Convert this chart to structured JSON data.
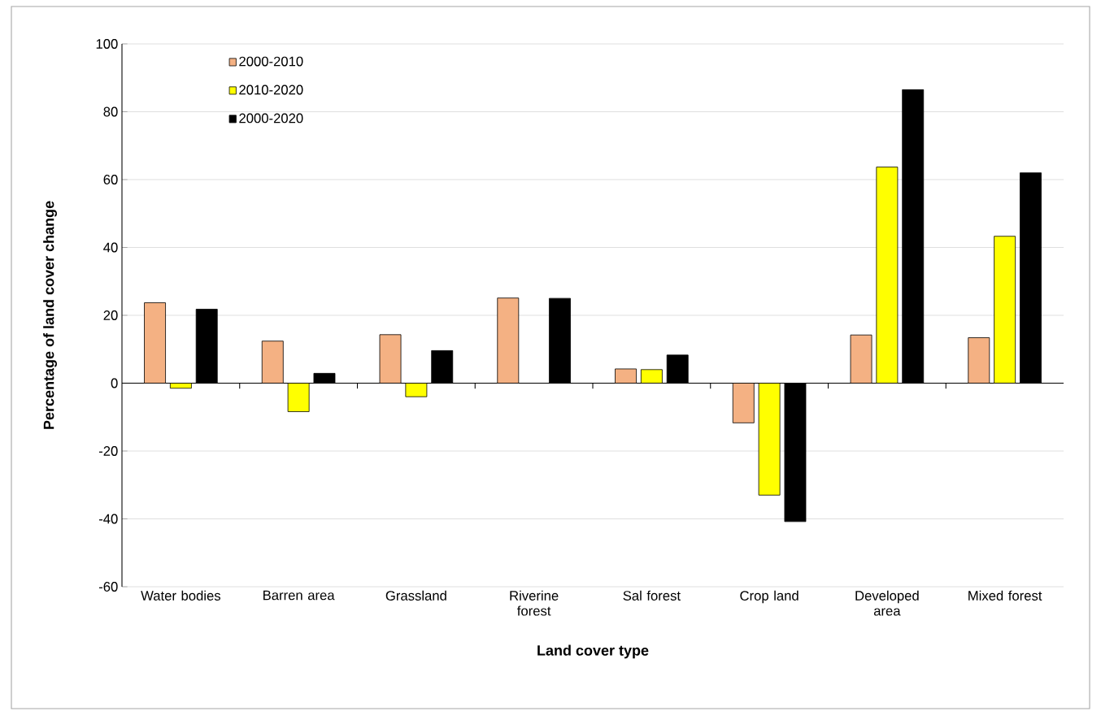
{
  "chart_data": {
    "type": "bar",
    "xlabel": "Land cover type",
    "ylabel": "Percentage of  land cover change",
    "categories": [
      "Water bodies",
      "Barren area",
      "Grassland",
      "Riverine forest",
      "Sal forest",
      "Crop land",
      "Developed area",
      "Mixed forest"
    ],
    "series": [
      {
        "name": "2000-2010",
        "color": "#f4b183",
        "values": [
          23.7,
          12.4,
          14.3,
          25.1,
          4.2,
          -11.7,
          14.2,
          13.4
        ]
      },
      {
        "name": "2010-2020",
        "color": "#ffff00",
        "values": [
          -1.5,
          -8.4,
          -4.0,
          null,
          4.0,
          -33.0,
          63.7,
          43.3
        ]
      },
      {
        "name": "2000-2020",
        "color": "#000000",
        "values": [
          21.8,
          2.9,
          9.6,
          25.0,
          8.3,
          -40.8,
          86.5,
          62.0
        ]
      }
    ],
    "ylim": [
      -60,
      100
    ],
    "yticks": [
      -60,
      -40,
      -20,
      0,
      20,
      40,
      60,
      80,
      100
    ],
    "grid": "y",
    "legend": "top left"
  }
}
